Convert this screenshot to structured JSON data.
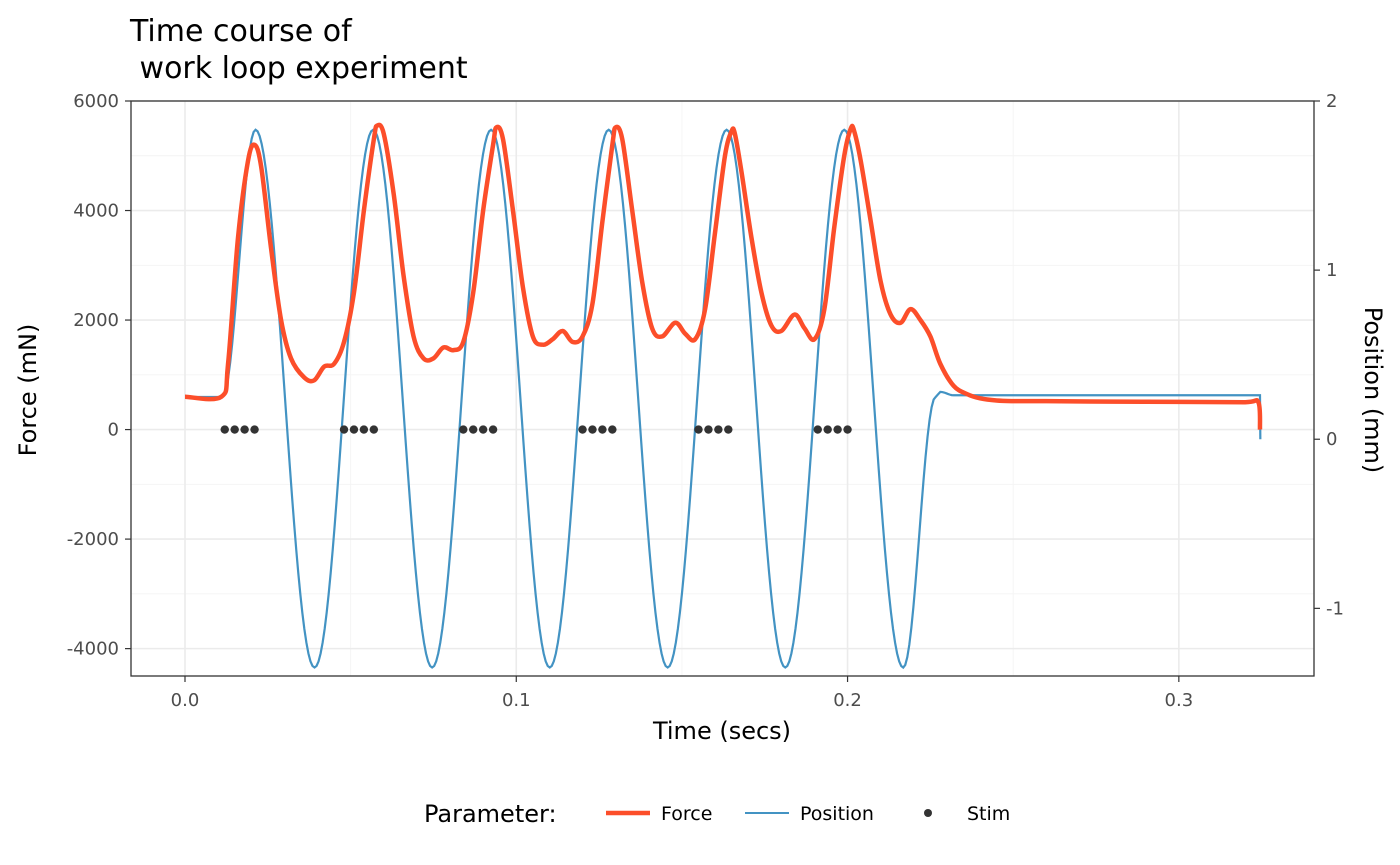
{
  "chart_data": {
    "type": "line",
    "title_lines": [
      "Time course of",
      " work loop experiment"
    ],
    "xlabel": "Time (secs)",
    "ylabel": "Force (mN)",
    "y2label": "Position (mm)",
    "xlim": [
      -0.0163,
      0.3408
    ],
    "ylim": [
      -4500,
      6000
    ],
    "y2lim": [
      -1.4,
      2.0
    ],
    "x_ticks": [
      0.0,
      0.1,
      0.2,
      0.3
    ],
    "x_tick_labels": [
      "0.0",
      "0.1",
      "0.2",
      "0.3"
    ],
    "y_ticks": [
      -4000,
      -2000,
      0,
      2000,
      4000,
      6000
    ],
    "y_tick_labels": [
      "-4000",
      "-2000",
      "0",
      "2000",
      "4000",
      "6000"
    ],
    "y2_ticks": [
      -1,
      0,
      1,
      2
    ],
    "y2_tick_labels": [
      "-1",
      "0",
      "1",
      "2"
    ],
    "grid": true,
    "legend": {
      "position": "bottom",
      "title": "Parameter:",
      "entries": [
        "Force",
        "Position",
        "Stim"
      ]
    },
    "colors": {
      "force": "#FC4E2A",
      "position": "#4393C3",
      "stim": "#333333"
    },
    "series": [
      {
        "name": "Force",
        "axis": "left",
        "x": [
          0,
          0.011,
          0.013,
          0.016,
          0.019,
          0.021,
          0.023,
          0.026,
          0.029,
          0.032,
          0.036,
          0.039,
          0.042,
          0.045,
          0.048,
          0.051,
          0.054,
          0.057,
          0.058,
          0.06,
          0.063,
          0.066,
          0.069,
          0.072,
          0.075,
          0.078,
          0.081,
          0.084,
          0.087,
          0.09,
          0.093,
          0.094,
          0.096,
          0.099,
          0.102,
          0.105,
          0.108,
          0.111,
          0.114,
          0.117,
          0.12,
          0.123,
          0.126,
          0.129,
          0.13,
          0.132,
          0.135,
          0.138,
          0.141,
          0.144,
          0.148,
          0.151,
          0.154,
          0.157,
          0.16,
          0.163,
          0.165,
          0.166,
          0.168,
          0.171,
          0.174,
          0.177,
          0.18,
          0.184,
          0.187,
          0.19,
          0.193,
          0.196,
          0.199,
          0.201,
          0.202,
          0.204,
          0.207,
          0.21,
          0.213,
          0.216,
          0.219,
          0.222,
          0.225,
          0.228,
          0.232,
          0.236,
          0.24,
          0.245,
          0.25,
          0.26,
          0.28,
          0.3,
          0.32,
          0.324,
          0.3245
        ],
        "y": [
          600,
          600,
          1200,
          3500,
          4900,
          5200,
          4800,
          3300,
          2000,
          1300,
          950,
          900,
          1150,
          1200,
          1600,
          2500,
          4000,
          5300,
          5550,
          5400,
          4300,
          2800,
          1700,
          1300,
          1300,
          1500,
          1450,
          1600,
          2500,
          4000,
          5200,
          5520,
          5300,
          4000,
          2600,
          1700,
          1550,
          1650,
          1800,
          1600,
          1700,
          2300,
          3800,
          5200,
          5520,
          5300,
          4000,
          2700,
          1850,
          1700,
          1950,
          1750,
          1650,
          2200,
          3600,
          5000,
          5450,
          5400,
          4700,
          3500,
          2500,
          1900,
          1800,
          2100,
          1850,
          1650,
          2200,
          3700,
          5000,
          5500,
          5450,
          4900,
          3800,
          2700,
          2100,
          1950,
          2200,
          2000,
          1700,
          1200,
          800,
          650,
          570,
          530,
          520,
          520,
          510,
          505,
          500,
          500,
          0
        ]
      },
      {
        "name": "Position",
        "axis": "right",
        "x": [
          0,
          0.0113,
          0.0213,
          0.0391,
          0.0568,
          0.0746,
          0.0924,
          0.1101,
          0.1279,
          0.1457,
          0.1635,
          0.1812,
          0.199,
          0.2168,
          0.2266,
          0.228,
          0.232,
          0.26,
          0.3,
          0.3245,
          0.3246
        ],
        "y": [
          0.25,
          0.25,
          1.83,
          -1.35,
          1.83,
          -1.35,
          1.83,
          -1.35,
          1.83,
          -1.35,
          1.83,
          -1.35,
          1.83,
          -1.35,
          0.25,
          0.28,
          0.26,
          0.26,
          0.26,
          0.26,
          0.0
        ]
      },
      {
        "name": "Stim",
        "axis": "left",
        "x": [
          0.012,
          0.015,
          0.018,
          0.021,
          0.048,
          0.051,
          0.054,
          0.057,
          0.084,
          0.087,
          0.09,
          0.093,
          0.12,
          0.123,
          0.126,
          0.129,
          0.155,
          0.158,
          0.161,
          0.164,
          0.191,
          0.194,
          0.197,
          0.2
        ],
        "y": [
          0,
          0,
          0,
          0,
          0,
          0,
          0,
          0,
          0,
          0,
          0,
          0,
          0,
          0,
          0,
          0,
          0,
          0,
          0,
          0,
          0,
          0,
          0,
          0
        ]
      }
    ]
  }
}
